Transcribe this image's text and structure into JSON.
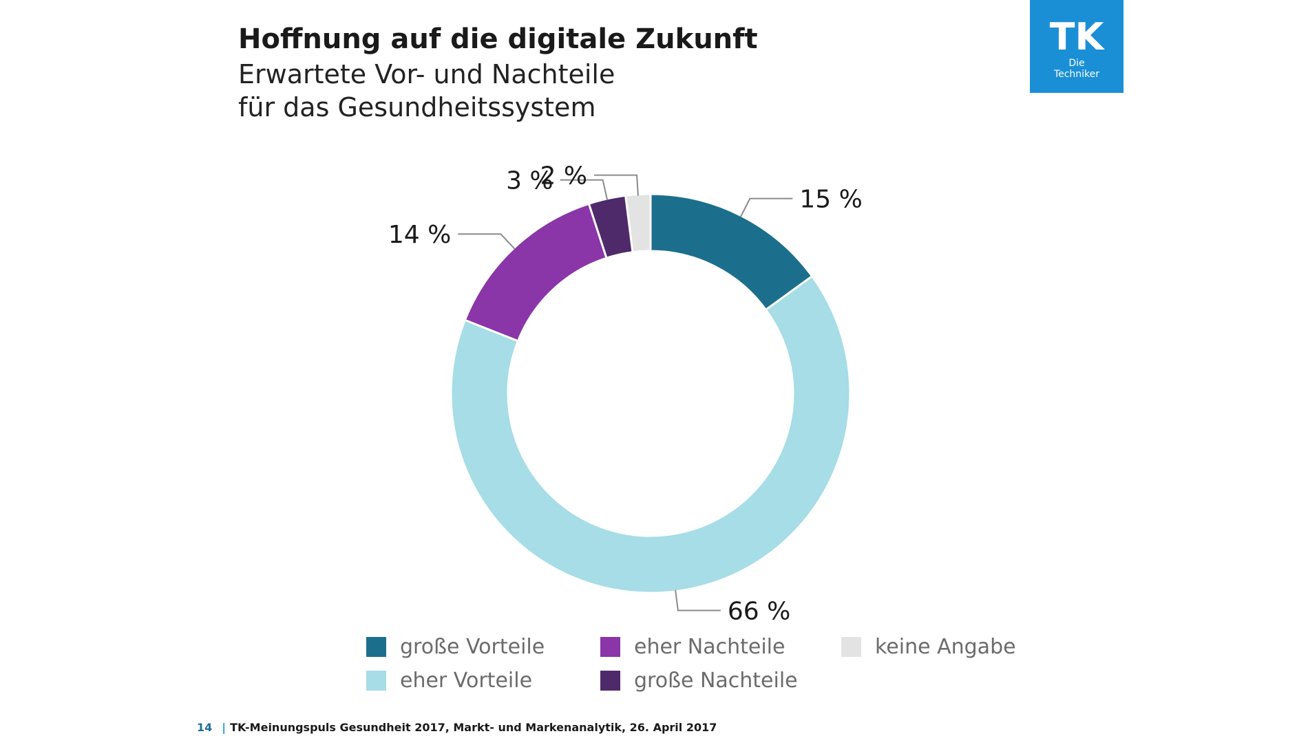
{
  "title": "Hoffnung auf die digitale Zukunft",
  "subtitle_line1": "Erwartete Vor- und Nachteile",
  "subtitle_line2": "für das Gesundheitssystem",
  "logo": {
    "letters": "TK",
    "line1": "Die",
    "line2": "Techniker",
    "color": "#1a8fd6"
  },
  "footer": {
    "page": "14",
    "separator": "|",
    "text": "TK-Meinungspuls Gesundheit 2017, Markt- und Markenanalytik, 26. April 2017"
  },
  "chart_data": {
    "type": "pie",
    "variant": "donut",
    "title": "",
    "start_angle_deg": 0,
    "direction": "clockwise",
    "slices": [
      {
        "label": "große Vorteile",
        "value": 15,
        "value_label": "15 %",
        "color": "#1c6f8c"
      },
      {
        "label": "eher Vorteile",
        "value": 66,
        "value_label": "66 %",
        "color": "#a6dde6"
      },
      {
        "label": "eher Nachteile",
        "value": 14,
        "value_label": "14 %",
        "color": "#8a35a8"
      },
      {
        "label": "große Nachteile",
        "value": 3,
        "value_label": "3 %",
        "color": "#4e2a6a"
      },
      {
        "label": "keine Angabe",
        "value": 2,
        "value_label": "2 %",
        "color": "#e3e3e3"
      }
    ],
    "legend": {
      "placement": "bottom",
      "order": [
        "große Vorteile",
        "eher Vorteile",
        "eher Nachteile",
        "große Nachteile",
        "keine Angabe"
      ]
    }
  }
}
